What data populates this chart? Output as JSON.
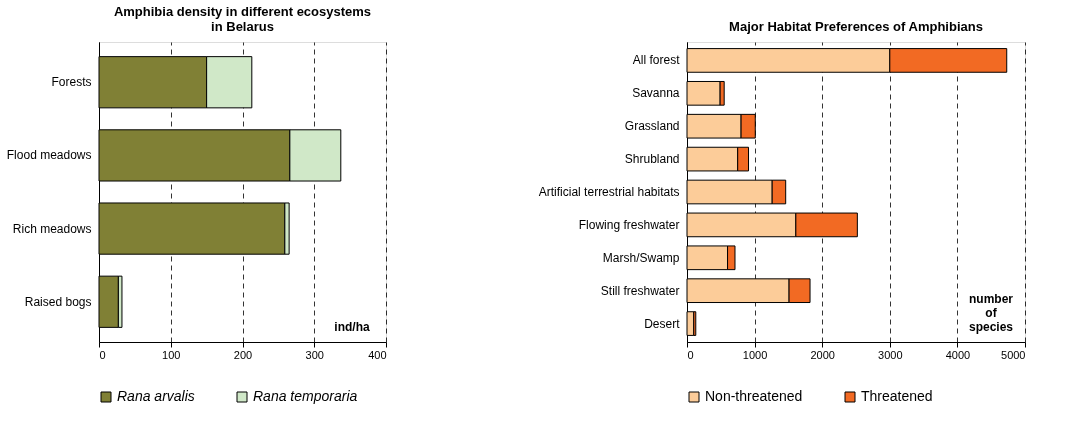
{
  "chart_data": [
    {
      "type": "bar",
      "orientation": "horizontal",
      "stacked": true,
      "title": "Amphibia density in different ecosystems\nin Belarus",
      "xlabel": "ind/ha",
      "categories": [
        "Forests",
        "Flood meadows",
        "Rich meadows",
        "Raised bogs"
      ],
      "series": [
        {
          "name": "Rana arvalis",
          "color": "#808035",
          "values": [
            150,
            266,
            259,
            27
          ]
        },
        {
          "name": "Rana temporaria",
          "color": "#d0e8c8",
          "values": [
            63,
            71,
            6,
            5
          ]
        }
      ],
      "xlim": [
        0,
        400
      ],
      "xticks": [
        0,
        100,
        200,
        300,
        400
      ],
      "grid": "x",
      "line_style": "dashed",
      "legend": "bottom"
    },
    {
      "type": "bar",
      "orientation": "horizontal",
      "stacked": true,
      "title": "Major Habitat Preferences of Amphibians",
      "xlabel": "number\nof\nspecies",
      "categories": [
        "All forest",
        "Savanna",
        "Grassland",
        "Shrubland",
        "Artificial terrestrial habitats",
        "Flowing freshwater",
        "Marsh/Swamp",
        "Still freshwater",
        "Desert"
      ],
      "series": [
        {
          "name": "Non-threatened",
          "color": "#fccc99",
          "values": [
            3000,
            490,
            800,
            750,
            1260,
            1610,
            600,
            1510,
            100
          ]
        },
        {
          "name": "Threatened",
          "color": "#f26a23",
          "values": [
            1730,
            60,
            210,
            160,
            200,
            910,
            110,
            310,
            30
          ]
        }
      ],
      "xlim": [
        0,
        5000
      ],
      "xticks": [
        0,
        1000,
        2000,
        3000,
        4000,
        5000
      ],
      "grid": "x",
      "line_style": "dashed",
      "legend": "bottom"
    }
  ]
}
